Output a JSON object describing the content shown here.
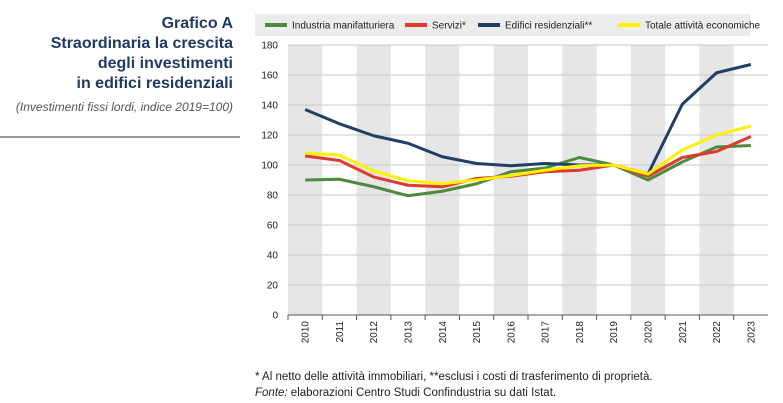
{
  "chart_data": {
    "type": "line",
    "title": [
      "Grafico A",
      "Straordinaria la crescita",
      "degli investimenti",
      "in edifici residenziali"
    ],
    "subtitle": "(Investimenti fissi lordi, indice 2019=100)",
    "categories": [
      "2010",
      "2011",
      "2012",
      "2013",
      "2014",
      "2015",
      "2016",
      "2017",
      "2018",
      "2019",
      "2020",
      "2021",
      "2022",
      "2023"
    ],
    "series": [
      {
        "name": "Industria manifatturiera",
        "color": "#4e8a3e",
        "values": [
          90,
          90.5,
          85.5,
          79.5,
          82.5,
          87.5,
          95.5,
          98,
          105,
          100,
          90,
          102,
          112,
          113
        ]
      },
      {
        "name": "Servizi*",
        "color": "#e03a2e",
        "values": [
          106,
          103,
          92,
          86.5,
          85.5,
          91,
          92.5,
          95.5,
          96.5,
          100,
          92.5,
          105,
          109,
          119
        ]
      },
      {
        "name": "Edifici residenziali**",
        "color": "#1f3f66",
        "values": [
          137,
          127.5,
          119.5,
          114.5,
          105.5,
          101,
          99.5,
          101,
          100,
          100,
          94,
          140.5,
          161.5,
          167
        ]
      },
      {
        "name": "Totale attività economiche",
        "color": "#fff200",
        "values": [
          108,
          106.5,
          96,
          89.5,
          87.5,
          90,
          93,
          96.5,
          99.5,
          100,
          94,
          110,
          120,
          126
        ]
      }
    ],
    "ylim": [
      0,
      180
    ],
    "yticks": [
      0,
      20,
      40,
      60,
      80,
      100,
      120,
      140,
      160,
      180
    ],
    "grid": true,
    "footnote": {
      "note": "* Al netto delle attività immobiliari, **esclusi i costi di trasferimento di proprietà.",
      "source_label": "Fonte:",
      "source": " elaborazioni Centro Studi Confindustria su dati Istat."
    }
  }
}
